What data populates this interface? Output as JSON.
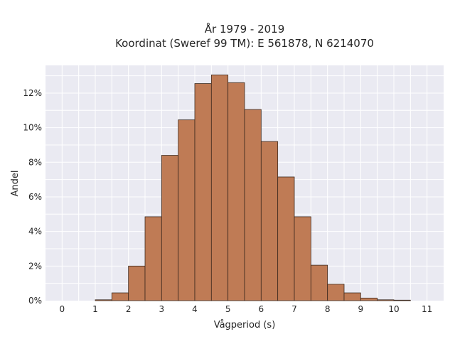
{
  "chart_data": {
    "type": "bar",
    "title_line1": "År 1979 - 2019",
    "title_line2": "Koordinat (Sweref 99 TM): E 561878, N 6214070",
    "xlabel": "Vågperiod (s)",
    "ylabel": "Andel",
    "xlim": [
      -0.5,
      11.5
    ],
    "ylim": [
      0,
      13.6
    ],
    "x_ticks": [
      0,
      1,
      2,
      3,
      4,
      5,
      6,
      7,
      8,
      9,
      10,
      11
    ],
    "y_ticks": [
      0,
      2,
      4,
      6,
      8,
      10,
      12
    ],
    "y_tick_labels": [
      "0%",
      "2%",
      "4%",
      "6%",
      "8%",
      "10%",
      "12%"
    ],
    "bin_width": 0.5,
    "bin_starts": [
      1.0,
      1.5,
      2.0,
      2.5,
      3.0,
      3.5,
      4.0,
      4.5,
      5.0,
      5.5,
      6.0,
      6.5,
      7.0,
      7.5,
      8.0,
      8.5,
      9.0,
      9.5,
      10.0
    ],
    "values": [
      0.05,
      0.45,
      2.0,
      4.85,
      8.4,
      10.45,
      12.55,
      13.05,
      12.6,
      11.05,
      9.2,
      7.15,
      4.85,
      2.05,
      0.95,
      0.45,
      0.15,
      0.05,
      0.03
    ],
    "grid": true,
    "colors": {
      "bar_fill": "#bf7b55",
      "bar_edge": "#3d2a1f",
      "plot_bg": "#eaeaf2",
      "grid": "#ffffff",
      "text": "#262626"
    }
  }
}
